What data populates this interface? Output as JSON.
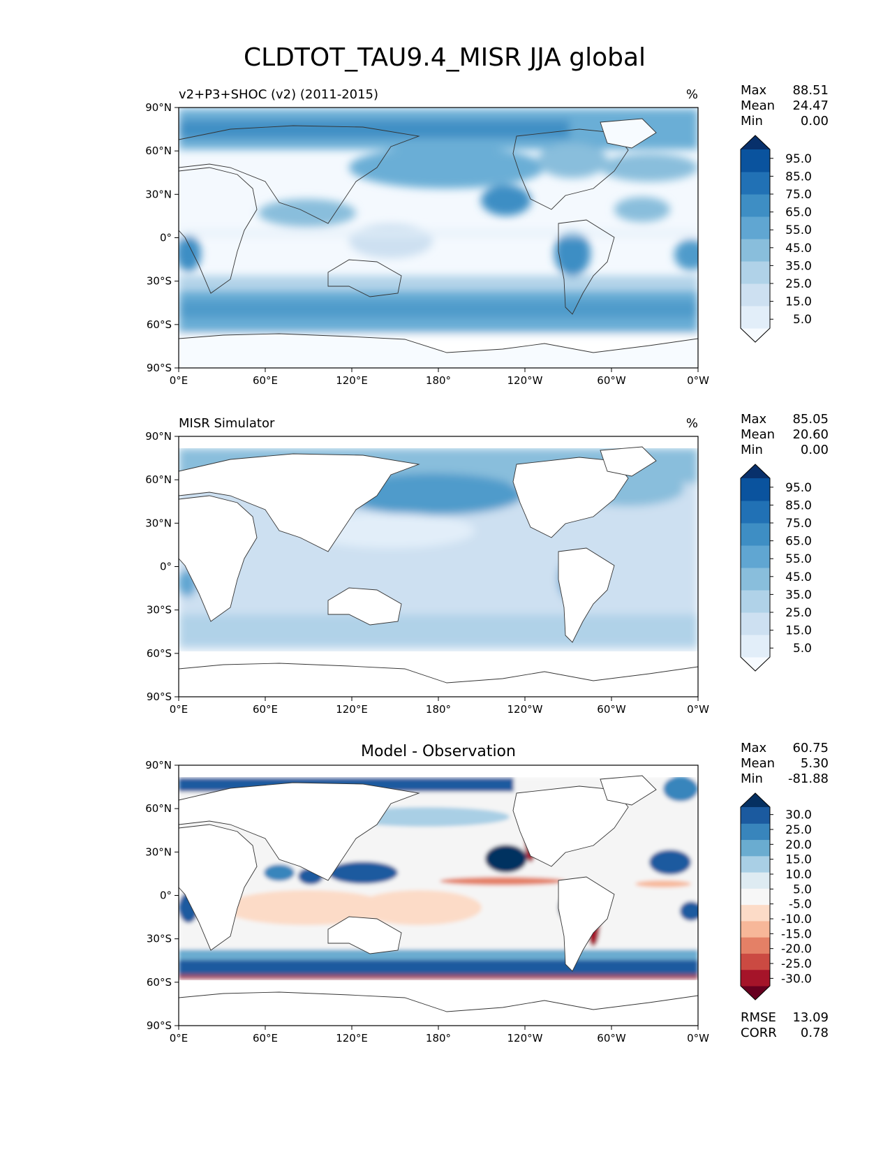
{
  "figure": {
    "title": "CLDTOT_TAU9.4_MISR JJA global"
  },
  "axes": {
    "lat_labels": [
      "90°N",
      "60°N",
      "30°N",
      "0°",
      "30°S",
      "60°S",
      "90°S"
    ],
    "lon_labels": [
      "0°E",
      "60°E",
      "120°E",
      "180°",
      "120°W",
      "60°W",
      "0°W"
    ]
  },
  "panels": [
    {
      "id": "model",
      "left_title": "v2+P3+SHOC (v2) (2011-2015)",
      "center_title": "",
      "units": "%",
      "stats": [
        {
          "label": "Max",
          "value": "88.51"
        },
        {
          "label": "Mean",
          "value": "24.47"
        },
        {
          "label": "Min",
          "value": "0.00"
        }
      ],
      "colorbar": {
        "ticks": [
          "95.0",
          "85.0",
          "75.0",
          "65.0",
          "55.0",
          "45.0",
          "35.0",
          "25.0",
          "15.0",
          "5.0"
        ],
        "colors": [
          "#f7fbff",
          "#e2eef9",
          "#cde0f1",
          "#b0d2e8",
          "#89bedc",
          "#60a6d2",
          "#3e8ec4",
          "#2171b5",
          "#0a539e",
          "#08306b"
        ]
      }
    },
    {
      "id": "obs",
      "left_title": "MISR Simulator",
      "center_title": "",
      "units": "%",
      "stats": [
        {
          "label": "Max",
          "value": "85.05"
        },
        {
          "label": "Mean",
          "value": "20.60"
        },
        {
          "label": "Min",
          "value": "0.00"
        }
      ],
      "colorbar": {
        "ticks": [
          "95.0",
          "85.0",
          "75.0",
          "65.0",
          "55.0",
          "45.0",
          "35.0",
          "25.0",
          "15.0",
          "5.0"
        ],
        "colors": [
          "#f7fbff",
          "#e2eef9",
          "#cde0f1",
          "#b0d2e8",
          "#89bedc",
          "#60a6d2",
          "#3e8ec4",
          "#2171b5",
          "#0a539e",
          "#08306b"
        ]
      }
    },
    {
      "id": "diff",
      "left_title": "",
      "center_title": "Model - Observation",
      "units": "",
      "stats": [
        {
          "label": "Max",
          "value": "60.75"
        },
        {
          "label": "Mean",
          "value": "5.30"
        },
        {
          "label": "Min",
          "value": "-81.88"
        }
      ],
      "extra_stats": [
        {
          "label": "RMSE",
          "value": "13.09"
        },
        {
          "label": "CORR",
          "value": "0.78"
        }
      ],
      "colorbar": {
        "ticks": [
          "30.0",
          "25.0",
          "20.0",
          "15.0",
          "10.0",
          "5.0",
          "-5.0",
          "-10.0",
          "-15.0",
          "-20.0",
          "-25.0",
          "-30.0"
        ],
        "colors": [
          "#67001f",
          "#a51429",
          "#cb4a42",
          "#e48066",
          "#f7b799",
          "#fcdbc7",
          "#f7f7f7",
          "#deebf2",
          "#a9cfe5",
          "#6aacd0",
          "#3885bc",
          "#1b5a9f",
          "#053061"
        ]
      }
    }
  ]
}
